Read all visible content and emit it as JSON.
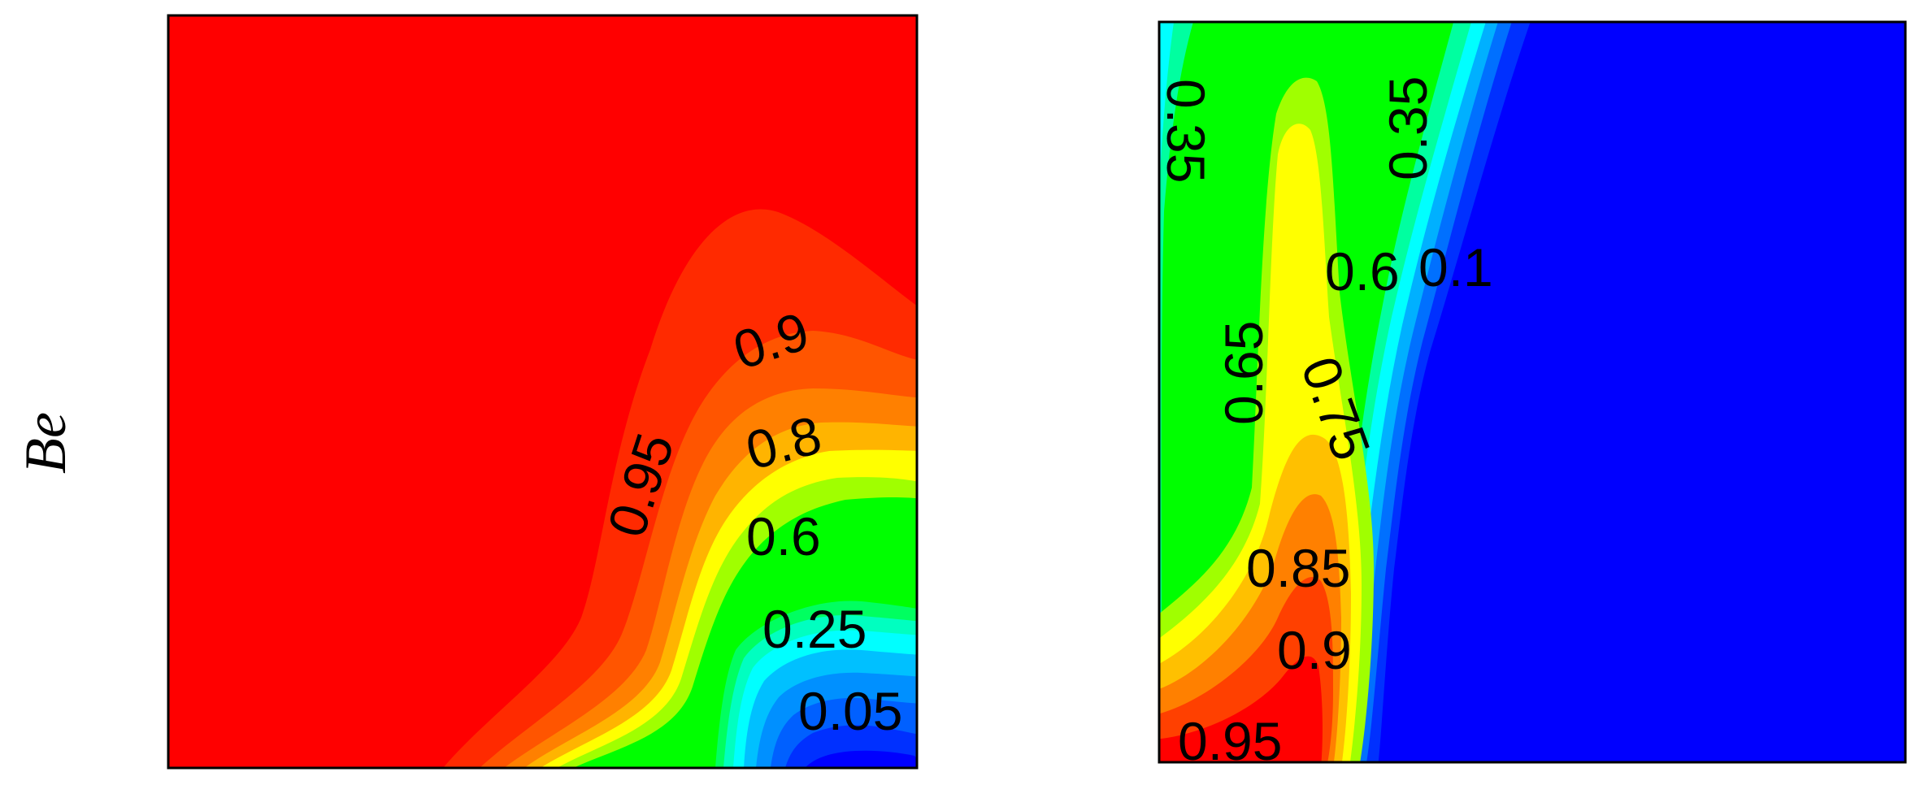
{
  "chart_data": [
    {
      "type": "heatmap",
      "plot_style": "filled contour",
      "ylabel": "Be",
      "xlabel": "",
      "title": "",
      "colormap": [
        "#0000FF",
        "#0050FF",
        "#00A0FF",
        "#00FFFF",
        "#00FF80",
        "#00FF00",
        "#A0FF00",
        "#FFFF00",
        "#FFC000",
        "#FF8000",
        "#FF4000",
        "#FF0000"
      ],
      "contour_labels": [
        {
          "text": "0.95",
          "value": 0.95
        },
        {
          "text": "0.9",
          "value": 0.9
        },
        {
          "text": "0.8",
          "value": 0.8
        },
        {
          "text": "0.6",
          "value": 0.6
        },
        {
          "text": "0.25",
          "value": 0.25
        },
        {
          "text": "0.05",
          "value": 0.05
        }
      ]
    },
    {
      "type": "heatmap",
      "plot_style": "filled contour",
      "xlabel": "",
      "ylabel": "",
      "title": "",
      "colormap": [
        "#0000FF",
        "#0050FF",
        "#00A0FF",
        "#00FFFF",
        "#00FF80",
        "#00FF00",
        "#A0FF00",
        "#FFFF00",
        "#FFC000",
        "#FF8000",
        "#FF4000",
        "#FF0000"
      ],
      "contour_labels": [
        {
          "text": "0.35",
          "value": 0.35
        },
        {
          "text": "0.35",
          "value": 0.35
        },
        {
          "text": "0.6",
          "value": 0.6
        },
        {
          "text": "0.1",
          "value": 0.1
        },
        {
          "text": "0.65",
          "value": 0.65
        },
        {
          "text": "0.75",
          "value": 0.75
        },
        {
          "text": "0.85",
          "value": 0.85
        },
        {
          "text": "0.9",
          "value": 0.9
        },
        {
          "text": "0.95",
          "value": 0.95
        }
      ]
    }
  ]
}
